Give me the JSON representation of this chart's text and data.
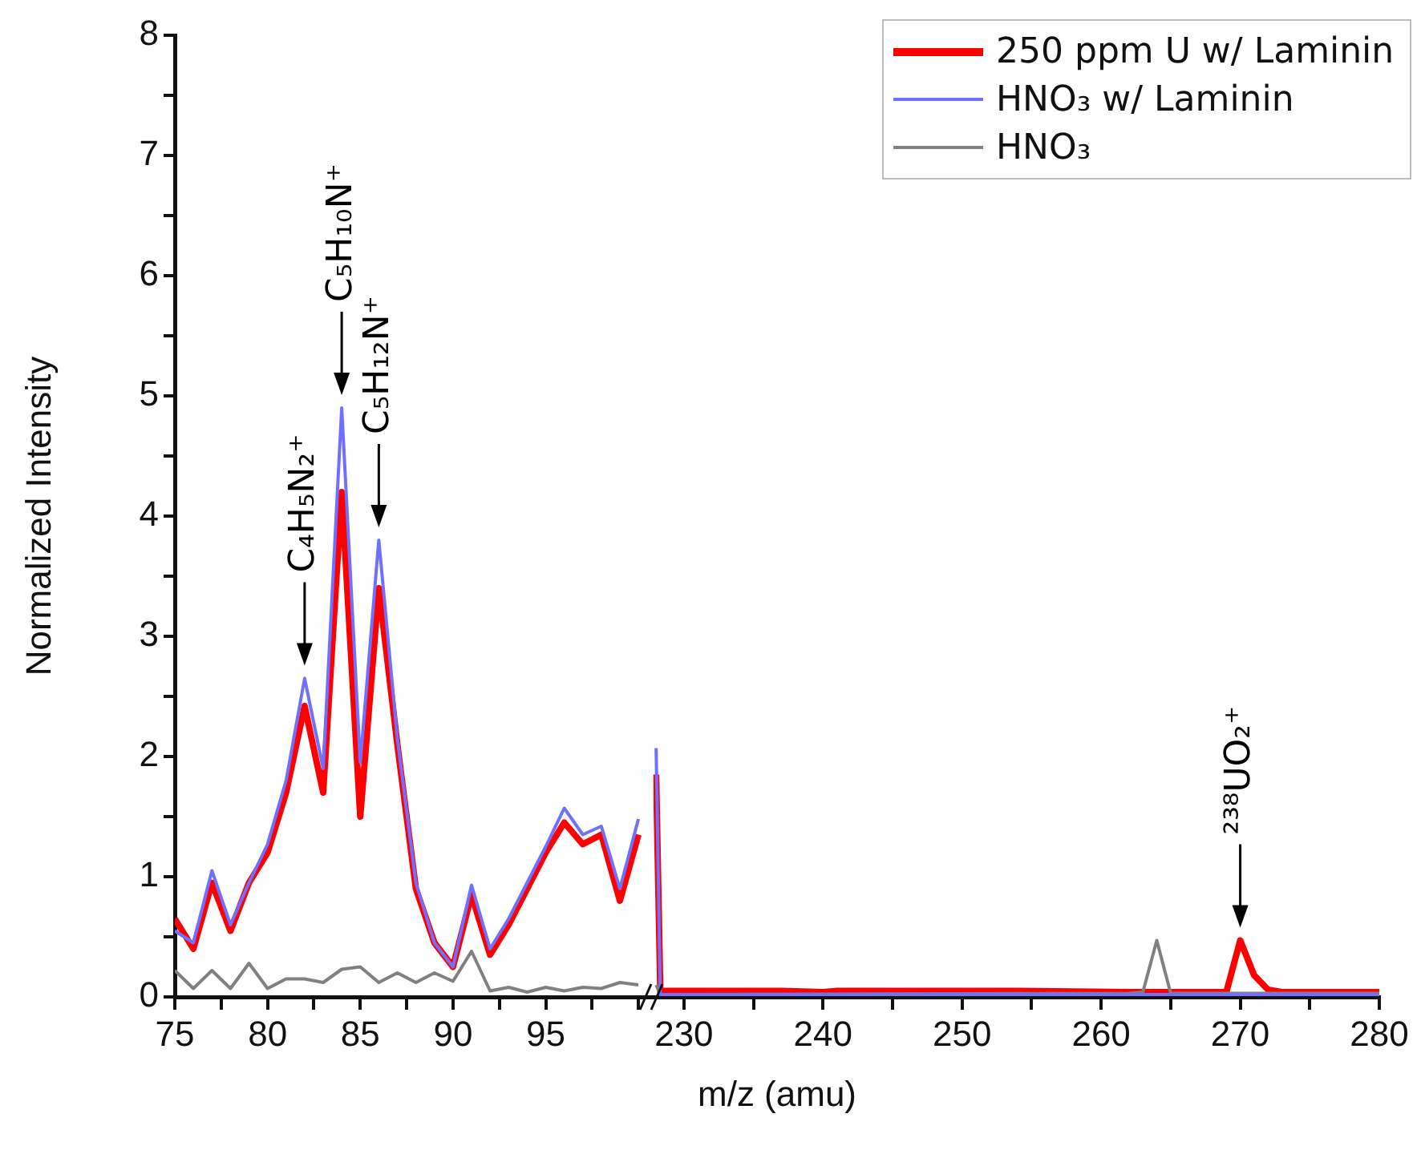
{
  "chart_data": [
    {
      "type": "line",
      "ylabel": "Normalized Intensity",
      "xlabel": "m/z (amu)",
      "x": [
        75,
        76,
        77,
        78,
        79,
        80,
        81,
        82,
        83,
        84,
        85,
        86,
        87,
        88,
        89,
        90,
        91,
        92,
        93,
        94,
        95,
        96,
        97,
        98,
        99,
        100
      ],
      "xlim": [
        75,
        100.6
      ],
      "xticks": [
        75,
        {
          "value": 77.5,
          "label": null
        },
        80,
        {
          "value": 82.5,
          "label": null
        },
        85,
        {
          "value": 87.5,
          "label": null
        },
        90,
        {
          "value": 92.5,
          "label": null
        },
        95,
        {
          "value": 97.5,
          "label": null
        },
        {
          "value": 100,
          "label": null
        }
      ],
      "ylim": [
        0,
        8
      ],
      "yticks": [
        0,
        {
          "value": 0.5,
          "label": null
        },
        1,
        {
          "value": 1.5,
          "label": null
        },
        2,
        {
          "value": 2.5,
          "label": null
        },
        3,
        {
          "value": 3.5,
          "label": null
        },
        4,
        {
          "value": 4.5,
          "label": null
        },
        5,
        {
          "value": 5.5,
          "label": null
        },
        6,
        {
          "value": 6.5,
          "label": null
        },
        7,
        {
          "value": 7.5,
          "label": null
        },
        8
      ],
      "series": [
        {
          "color": "#ff0000",
          "values": [
            0.65,
            0.4,
            0.95,
            0.55,
            0.95,
            1.2,
            1.7,
            2.42,
            1.7,
            4.2,
            1.5,
            3.4,
            2.1,
            0.9,
            0.45,
            0.25,
            0.85,
            0.35,
            0.6,
            0.9,
            1.2,
            1.45,
            1.27,
            1.35,
            0.8,
            1.35
          ]
        },
        {
          "color": "#7070ff",
          "values": [
            0.55,
            0.45,
            1.05,
            0.6,
            0.95,
            1.27,
            1.8,
            2.65,
            1.9,
            4.9,
            1.95,
            3.8,
            2.15,
            0.95,
            0.45,
            0.25,
            0.93,
            0.4,
            0.65,
            0.95,
            1.25,
            1.57,
            1.35,
            1.42,
            0.9,
            1.48
          ]
        },
        {
          "color": "#808080",
          "values": [
            0.22,
            0.07,
            0.22,
            0.07,
            0.28,
            0.07,
            0.15,
            0.15,
            0.12,
            0.23,
            0.25,
            0.12,
            0.2,
            0.12,
            0.2,
            0.13,
            0.38,
            0.05,
            0.08,
            0.04,
            0.08,
            0.05,
            0.08,
            0.07,
            0.12,
            0.1
          ]
        }
      ],
      "annotations": [
        {
          "text": "C₄H₅N₂⁺",
          "x": 82,
          "y": 2.65
        },
        {
          "text": "C₅H₁₀N⁺",
          "x": 84,
          "y": 4.9
        },
        {
          "text": "C₅H₁₂N⁺",
          "x": 86,
          "y": 3.8
        }
      ]
    },
    {
      "type": "line",
      "tick_labels": "x",
      "legend": "top right",
      "xlim": [
        227.8,
        280
      ],
      "xticks": [
        230,
        {
          "value": 235,
          "label": null
        },
        240,
        {
          "value": 245,
          "label": null
        },
        250,
        {
          "value": 255,
          "label": null
        },
        260,
        {
          "value": 265,
          "label": null
        },
        270,
        {
          "value": 275,
          "label": null
        },
        280
      ],
      "ylim": [
        0,
        8
      ],
      "series": [
        {
          "name": "250 ppm U w/ Laminin",
          "color": "#ff0000",
          "x": [
            228,
            228.3,
            237,
            240,
            241,
            249,
            251,
            254,
            262,
            269,
            270,
            271,
            272,
            273,
            280
          ],
          "values": [
            1.85,
            0.05,
            0.05,
            0.04,
            0.05,
            0.05,
            0.05,
            0.05,
            0.04,
            0.04,
            0.47,
            0.18,
            0.06,
            0.04,
            0.04
          ]
        },
        {
          "name": "HNO₃ w/ Laminin",
          "color": "#7070ff",
          "x": [
            228,
            228.3,
            280
          ],
          "values": [
            2.07,
            0.02,
            0.02
          ]
        },
        {
          "name": "HNO₃",
          "color": "#808080",
          "x": [
            228,
            228.3,
            262,
            263,
            264,
            265,
            280
          ],
          "values": [
            0.1,
            0.02,
            0.03,
            0.04,
            0.47,
            0.03,
            0.03
          ]
        }
      ],
      "annotations": [
        {
          "text": "²³⁸UO₂⁺",
          "x": 270,
          "y": 0.47
        }
      ]
    }
  ]
}
